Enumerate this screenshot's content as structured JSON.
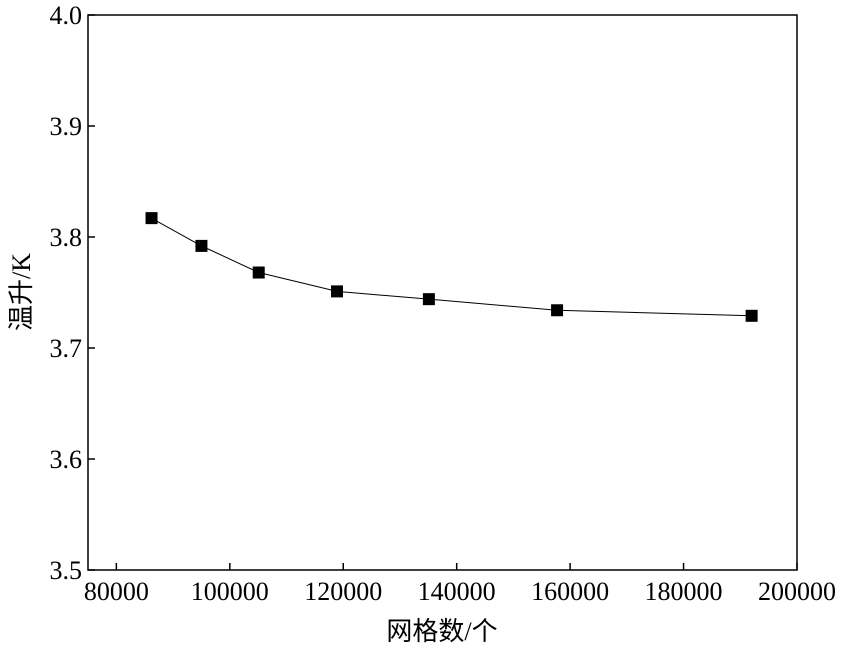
{
  "chart_data": {
    "type": "line",
    "x_label": "网格数/个",
    "y_label": "温升/K",
    "x": [
      86200,
      95000,
      105100,
      118900,
      135100,
      157700,
      192000
    ],
    "series": [
      {
        "color": "#000000",
        "values": [
          3.817,
          3.792,
          3.768,
          3.751,
          3.744,
          3.734,
          3.729
        ]
      }
    ],
    "xlim": [
      75000,
      200000
    ],
    "xticks": [
      80000,
      100000,
      120000,
      140000,
      160000,
      180000,
      200000
    ],
    "ylim": [
      3.5,
      4.0
    ],
    "yticks": [
      3.5,
      3.6,
      3.7,
      3.8,
      3.9,
      {
        "value": 4.0,
        "label": "4.0"
      }
    ],
    "grid": false
  }
}
